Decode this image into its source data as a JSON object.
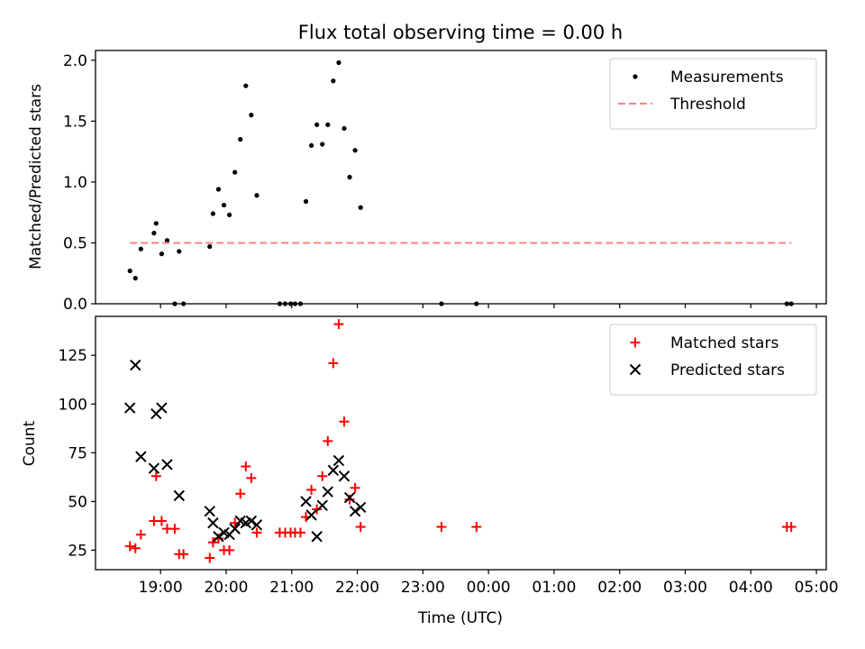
{
  "chart_data": [
    {
      "type": "scatter",
      "title": "Flux total observing time = 0.00 h",
      "xlabel": "",
      "ylabel": "Matched/Predicted stars",
      "ylim": [
        0,
        2.08
      ],
      "yticks": [
        "0.0",
        "0.5",
        "1.0",
        "1.5",
        "2.0"
      ],
      "grid": false,
      "legend_position": "upper right",
      "series": [
        {
          "name": "Measurements",
          "kind": "scatter",
          "marker": "dot",
          "color": "#000000",
          "points": [
            [
              "18:32",
              0.27
            ],
            [
              "18:37",
              0.21
            ],
            [
              "18:42",
              0.45
            ],
            [
              "18:54",
              0.58
            ],
            [
              "18:56",
              0.66
            ],
            [
              "19:01",
              0.41
            ],
            [
              "19:06",
              0.52
            ],
            [
              "19:13",
              0.0
            ],
            [
              "19:17",
              0.43
            ],
            [
              "19:21",
              0.0
            ],
            [
              "19:45",
              0.47
            ],
            [
              "19:48",
              0.74
            ],
            [
              "19:53",
              0.94
            ],
            [
              "19:58",
              0.81
            ],
            [
              "20:03",
              0.73
            ],
            [
              "20:08",
              1.08
            ],
            [
              "20:13",
              1.35
            ],
            [
              "20:18",
              1.79
            ],
            [
              "20:23",
              1.55
            ],
            [
              "20:28",
              0.89
            ],
            [
              "20:49",
              0.0
            ],
            [
              "20:54",
              0.0
            ],
            [
              "20:59",
              0.0
            ],
            [
              "21:03",
              0.0
            ],
            [
              "21:08",
              0.0
            ],
            [
              "21:13",
              0.84
            ],
            [
              "21:18",
              1.3
            ],
            [
              "21:23",
              1.47
            ],
            [
              "21:28",
              1.31
            ],
            [
              "21:33",
              1.47
            ],
            [
              "21:38",
              1.83
            ],
            [
              "21:43",
              1.98
            ],
            [
              "21:48",
              1.44
            ],
            [
              "21:53",
              1.04
            ],
            [
              "21:58",
              1.26
            ],
            [
              "22:03",
              0.79
            ],
            [
              "23:17",
              0.0
            ],
            [
              "23:49",
              0.0
            ],
            [
              "04:33",
              0.0
            ],
            [
              "04:37",
              0.0
            ]
          ]
        },
        {
          "name": "Threshold",
          "kind": "line",
          "style": "dashed",
          "color": "#ff8080",
          "points": [
            [
              "18:32",
              0.5
            ],
            [
              "04:37",
              0.5
            ]
          ]
        }
      ]
    },
    {
      "type": "scatter",
      "title": "",
      "xlabel": "Time (UTC)",
      "ylabel": "Count",
      "ylim": [
        15,
        145
      ],
      "yticks": [
        "25",
        "50",
        "75",
        "100",
        "125"
      ],
      "xticks": [
        "19:00",
        "20:00",
        "21:00",
        "22:00",
        "23:00",
        "00:00",
        "01:00",
        "02:00",
        "03:00",
        "04:00",
        "05:00"
      ],
      "grid": false,
      "legend_position": "upper right",
      "series": [
        {
          "name": "Matched stars",
          "kind": "scatter",
          "marker": "plus",
          "color": "#ff0000",
          "points": [
            [
              "18:32",
              27
            ],
            [
              "18:37",
              26
            ],
            [
              "18:42",
              33
            ],
            [
              "18:54",
              40
            ],
            [
              "18:56",
              63
            ],
            [
              "19:01",
              40
            ],
            [
              "19:06",
              36
            ],
            [
              "19:13",
              36
            ],
            [
              "19:17",
              23
            ],
            [
              "19:21",
              23
            ],
            [
              "19:45",
              21
            ],
            [
              "19:48",
              29
            ],
            [
              "19:53",
              31
            ],
            [
              "19:58",
              25
            ],
            [
              "20:03",
              25
            ],
            [
              "20:08",
              39
            ],
            [
              "20:13",
              54
            ],
            [
              "20:18",
              68
            ],
            [
              "20:23",
              62
            ],
            [
              "20:28",
              34
            ],
            [
              "20:49",
              34
            ],
            [
              "20:54",
              34
            ],
            [
              "20:59",
              34
            ],
            [
              "21:03",
              34
            ],
            [
              "21:08",
              34
            ],
            [
              "21:13",
              42
            ],
            [
              "21:18",
              56
            ],
            [
              "21:23",
              46
            ],
            [
              "21:28",
              63
            ],
            [
              "21:33",
              81
            ],
            [
              "21:38",
              121
            ],
            [
              "21:43",
              141
            ],
            [
              "21:48",
              91
            ],
            [
              "21:53",
              51
            ],
            [
              "21:58",
              57
            ],
            [
              "22:03",
              37
            ],
            [
              "23:17",
              37
            ],
            [
              "23:49",
              37
            ],
            [
              "04:33",
              37
            ],
            [
              "04:37",
              37
            ]
          ]
        },
        {
          "name": "Predicted stars",
          "kind": "scatter",
          "marker": "x",
          "color": "#000000",
          "points": [
            [
              "18:32",
              98
            ],
            [
              "18:37",
              120
            ],
            [
              "18:42",
              73
            ],
            [
              "18:54",
              67
            ],
            [
              "18:56",
              95
            ],
            [
              "19:01",
              98
            ],
            [
              "19:06",
              69
            ],
            [
              "19:17",
              53
            ],
            [
              "19:45",
              45
            ],
            [
              "19:48",
              39
            ],
            [
              "19:53",
              32
            ],
            [
              "19:58",
              34
            ],
            [
              "20:03",
              33
            ],
            [
              "20:08",
              36
            ],
            [
              "20:13",
              40
            ],
            [
              "20:18",
              39
            ],
            [
              "20:23",
              40
            ],
            [
              "20:28",
              38
            ],
            [
              "21:13",
              50
            ],
            [
              "21:18",
              43
            ],
            [
              "21:23",
              32
            ],
            [
              "21:28",
              48
            ],
            [
              "21:33",
              55
            ],
            [
              "21:38",
              66
            ],
            [
              "21:43",
              71
            ],
            [
              "21:48",
              63
            ],
            [
              "21:53",
              52
            ],
            [
              "21:58",
              45
            ],
            [
              "22:03",
              47
            ]
          ]
        }
      ]
    }
  ]
}
